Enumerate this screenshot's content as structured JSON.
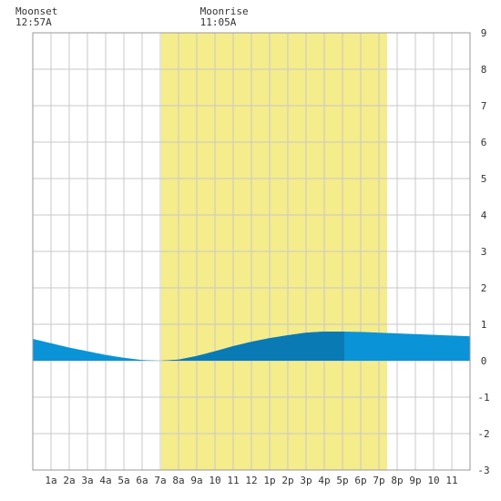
{
  "chart_data": {
    "type": "area",
    "x_tick_labels": [
      "1a",
      "2a",
      "3a",
      "4a",
      "5a",
      "6a",
      "7a",
      "8a",
      "9a",
      "10",
      "11",
      "12",
      "1p",
      "2p",
      "3p",
      "4p",
      "5p",
      "6p",
      "7p",
      "8p",
      "9p",
      "10",
      "11"
    ],
    "y_tick_labels": [
      "-3",
      "-2",
      "-1",
      "0",
      "1",
      "2",
      "3",
      "4",
      "5",
      "6",
      "7",
      "8",
      "9"
    ],
    "xlim": [
      0,
      24
    ],
    "ylim": [
      -3,
      9
    ],
    "grid": true,
    "daylight": {
      "start": 7.05,
      "end": 19.45
    },
    "moon_events": [
      {
        "label": "Moonset",
        "time": "12:57A",
        "hour": 0.95
      },
      {
        "label": "Moonrise",
        "time": "11:05A",
        "hour": 11.08
      }
    ],
    "tide": {
      "x": [
        0,
        1,
        2,
        3,
        4,
        5,
        6,
        7,
        8,
        9,
        10,
        11,
        12,
        13,
        14,
        15,
        16,
        17,
        18,
        19,
        20,
        21,
        22,
        23,
        24
      ],
      "y": [
        0.6,
        0.48,
        0.36,
        0.26,
        0.16,
        0.08,
        0.02,
        0.0,
        0.03,
        0.13,
        0.26,
        0.4,
        0.52,
        0.62,
        0.7,
        0.77,
        0.8,
        0.8,
        0.79,
        0.77,
        0.75,
        0.73,
        0.71,
        0.69,
        0.67
      ]
    },
    "highlight_range": {
      "start": 7.05,
      "end": 17.1
    },
    "colors": {
      "tide": "#0a93d6",
      "tide_daylight": "#0a7ab5",
      "daylight_band": "#f5ec8b",
      "grid": "#c8c8c8",
      "axis": "#999999"
    }
  }
}
